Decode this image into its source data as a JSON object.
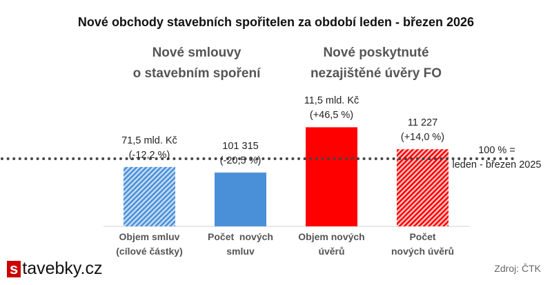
{
  "chart_data": {
    "type": "bar",
    "title": "Nové obchody stavebních spořitelen za období leden - březen 2026",
    "groups": [
      "Nové smlouvy\no stavebním spoření",
      "Nové poskytnuté\nnezajištěné úvěry FO"
    ],
    "categories": [
      "Objem smluv\n(cílové částky)",
      "Počet  nových\nsmluv",
      "Objem nových\núvěrů",
      "Počet\nnových úvěrů"
    ],
    "values_pct_of_2025": [
      87.8,
      79.5,
      146.5,
      114.0
    ],
    "data_labels": [
      "71,5 mld. Kč\n(-12,2 %)",
      "101 315\n(-20,5 %)",
      "11,5 mld. Kč\n(+46,5 %)",
      "11 227\n(+14,0 %)"
    ],
    "fills": [
      "hatched",
      "solid",
      "solid",
      "hatched"
    ],
    "colors": [
      "#4a90d9",
      "#4a90d9",
      "#ff0000",
      "#ff0000"
    ],
    "reference_line": {
      "value": 100,
      "label": "100 % =\nleden - březen 2025"
    },
    "grid": false
  },
  "footer": {
    "logo_letter": "s",
    "logo_rest": "tavebky.cz",
    "source": "Zdroj: ČTK"
  }
}
